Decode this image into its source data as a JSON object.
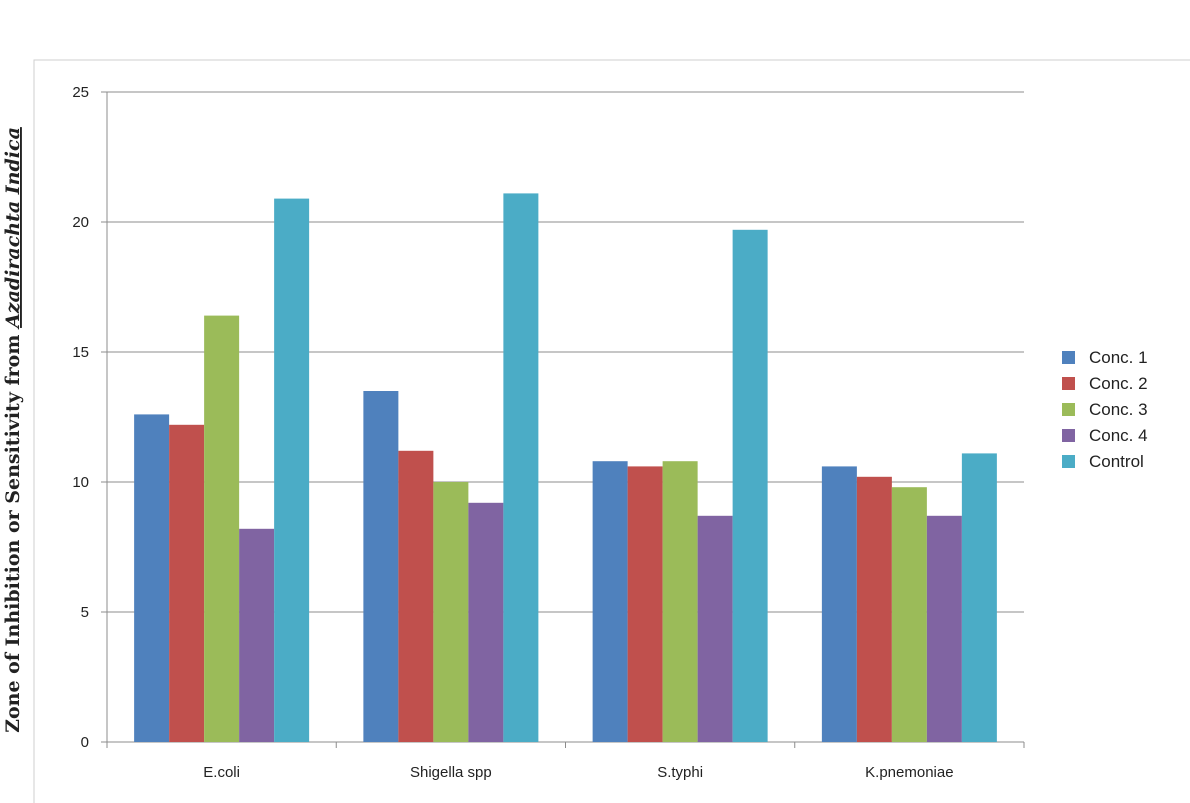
{
  "chart_data": {
    "type": "bar",
    "categories": [
      "E.coli",
      "Shigella spp",
      "S.typhi",
      "K.pnemoniae"
    ],
    "series": [
      {
        "name": "Conc. 1",
        "color": "#4F81BD",
        "values": [
          12.6,
          13.5,
          10.8,
          10.6
        ]
      },
      {
        "name": "Conc. 2",
        "color": "#C0504D",
        "values": [
          12.2,
          11.2,
          10.6,
          10.2
        ]
      },
      {
        "name": "Conc. 3",
        "color": "#9BBB59",
        "values": [
          16.4,
          10.0,
          10.8,
          9.8
        ]
      },
      {
        "name": "Conc. 4",
        "color": "#8064A2",
        "values": [
          8.2,
          9.2,
          8.7,
          8.7
        ]
      },
      {
        "name": "Control",
        "color": "#4BACC6",
        "values": [
          20.9,
          21.1,
          19.7,
          11.1
        ]
      }
    ],
    "ylim": [
      0,
      25
    ],
    "yticks": [
      0,
      5,
      10,
      15,
      20,
      25
    ],
    "ylabel_main": "Zone of Inhibition or Sensitivity from ",
    "ylabel_emph": "Azadirachta Indica",
    "grid": true,
    "legend_position": "right"
  }
}
